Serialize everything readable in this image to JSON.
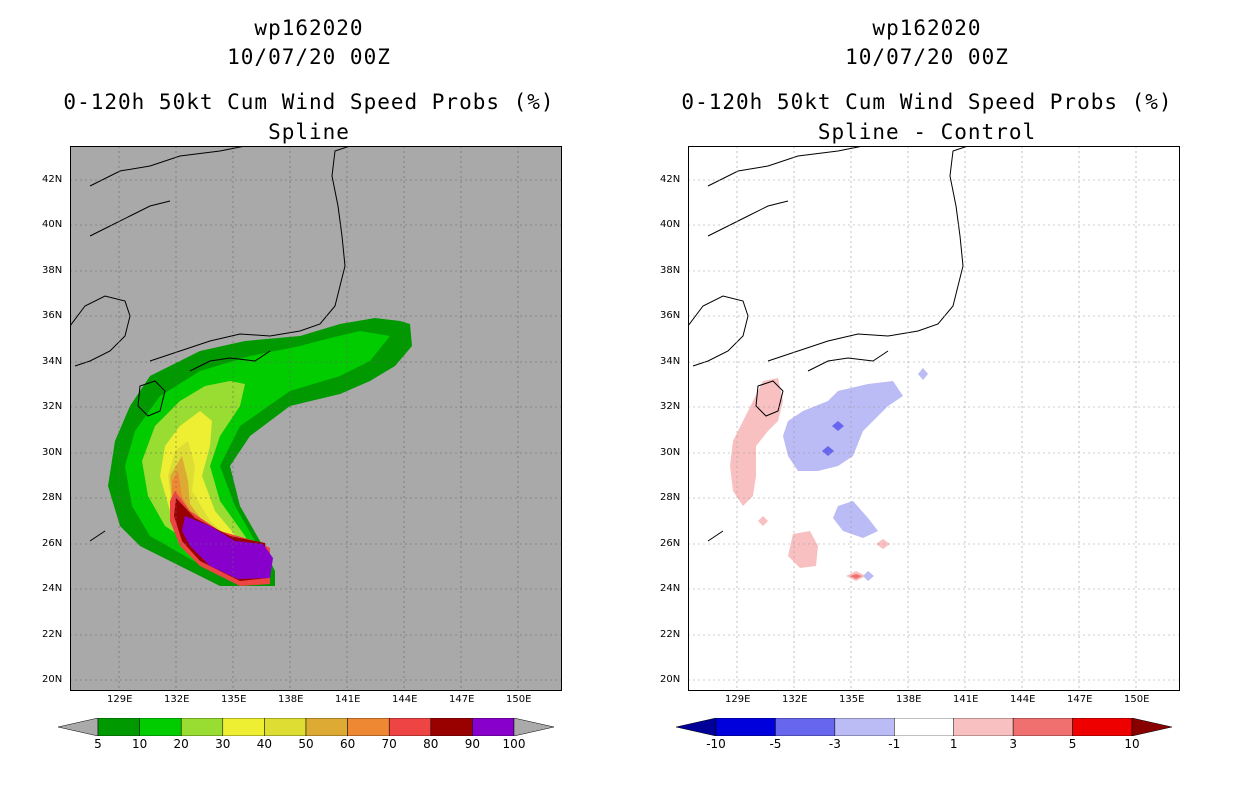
{
  "left_panel": {
    "storm_id": "wp162020",
    "datetime": "10/07/20 00Z",
    "product_title": "0-120h 50kt Cum Wind Speed Probs (%)",
    "subtitle": "Spline",
    "background_color": "#a9a9a9",
    "lat_labels": [
      "42N",
      "40N",
      "38N",
      "36N",
      "34N",
      "32N",
      "30N",
      "28N",
      "26N",
      "24N",
      "22N",
      "20N"
    ],
    "lon_labels": [
      "129E",
      "132E",
      "135E",
      "138E",
      "141E",
      "144E",
      "147E",
      "150E"
    ],
    "colorbar": {
      "colors": [
        "#009900",
        "#00cc00",
        "#99dd33",
        "#eeee33",
        "#dddd33",
        "#ddaa33",
        "#ee8833",
        "#ee4444",
        "#990000",
        "#8800cc"
      ],
      "labels": [
        "5",
        "10",
        "20",
        "30",
        "40",
        "50",
        "60",
        "70",
        "80",
        "90",
        "100"
      ],
      "end_color": "#aaaaaa"
    }
  },
  "right_panel": {
    "storm_id": "wp162020",
    "datetime": "10/07/20 00Z",
    "product_title": "0-120h 50kt Cum Wind Speed Probs (%)",
    "subtitle": "Spline - Control",
    "background_color": "#ffffff",
    "lat_labels": [
      "42N",
      "40N",
      "38N",
      "36N",
      "34N",
      "32N",
      "30N",
      "28N",
      "26N",
      "24N",
      "22N",
      "20N"
    ],
    "lon_labels": [
      "129E",
      "132E",
      "135E",
      "138E",
      "141E",
      "144E",
      "147E",
      "150E"
    ],
    "colorbar": {
      "colors": [
        "#0000dd",
        "#6666ee",
        "#bbbbf5",
        "#ffffff",
        "#f8c0c0",
        "#f07070",
        "#ee0000"
      ],
      "labels": [
        "-10",
        "-5",
        "-3",
        "-1",
        "1",
        "3",
        "5",
        "10"
      ],
      "end_left_color": "#000099",
      "end_right_color": "#880000"
    }
  }
}
